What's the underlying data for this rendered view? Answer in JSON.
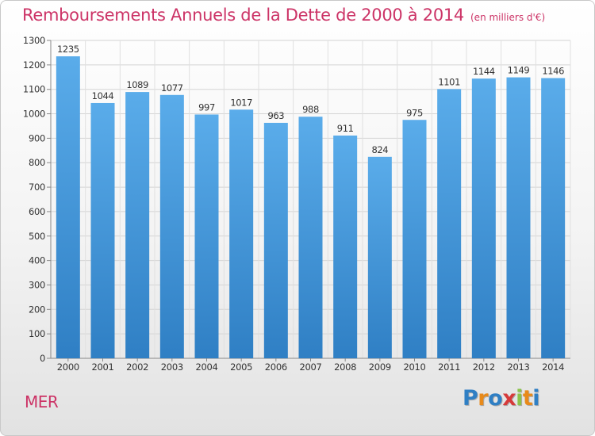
{
  "header": {
    "title": "Remboursements Annuels de la Dette de 2000 à 2014",
    "unit": "(en milliers d'€)"
  },
  "footer": {
    "location": "MER",
    "brand": "Proxiti"
  },
  "colors": {
    "title": "#cc3366",
    "bar_light": "#5aacea",
    "bar_dark": "#2f7fc4"
  },
  "chart_data": {
    "type": "bar",
    "title": "Remboursements Annuels de la Dette de 2000 à 2014",
    "subtitle": "(en milliers d'€)",
    "xlabel": "",
    "ylabel": "",
    "categories": [
      "2000",
      "2001",
      "2002",
      "2003",
      "2004",
      "2005",
      "2006",
      "2007",
      "2008",
      "2009",
      "2010",
      "2011",
      "2012",
      "2013",
      "2014"
    ],
    "values": [
      1235,
      1044,
      1089,
      1077,
      997,
      1017,
      963,
      988,
      911,
      824,
      975,
      1101,
      1144,
      1149,
      1146
    ],
    "ylim": [
      0,
      1300
    ],
    "yticks": [
      0,
      100,
      200,
      300,
      400,
      500,
      600,
      700,
      800,
      900,
      1000,
      1100,
      1200,
      1300
    ],
    "grid": true,
    "legend": "none",
    "data_labels": true
  }
}
